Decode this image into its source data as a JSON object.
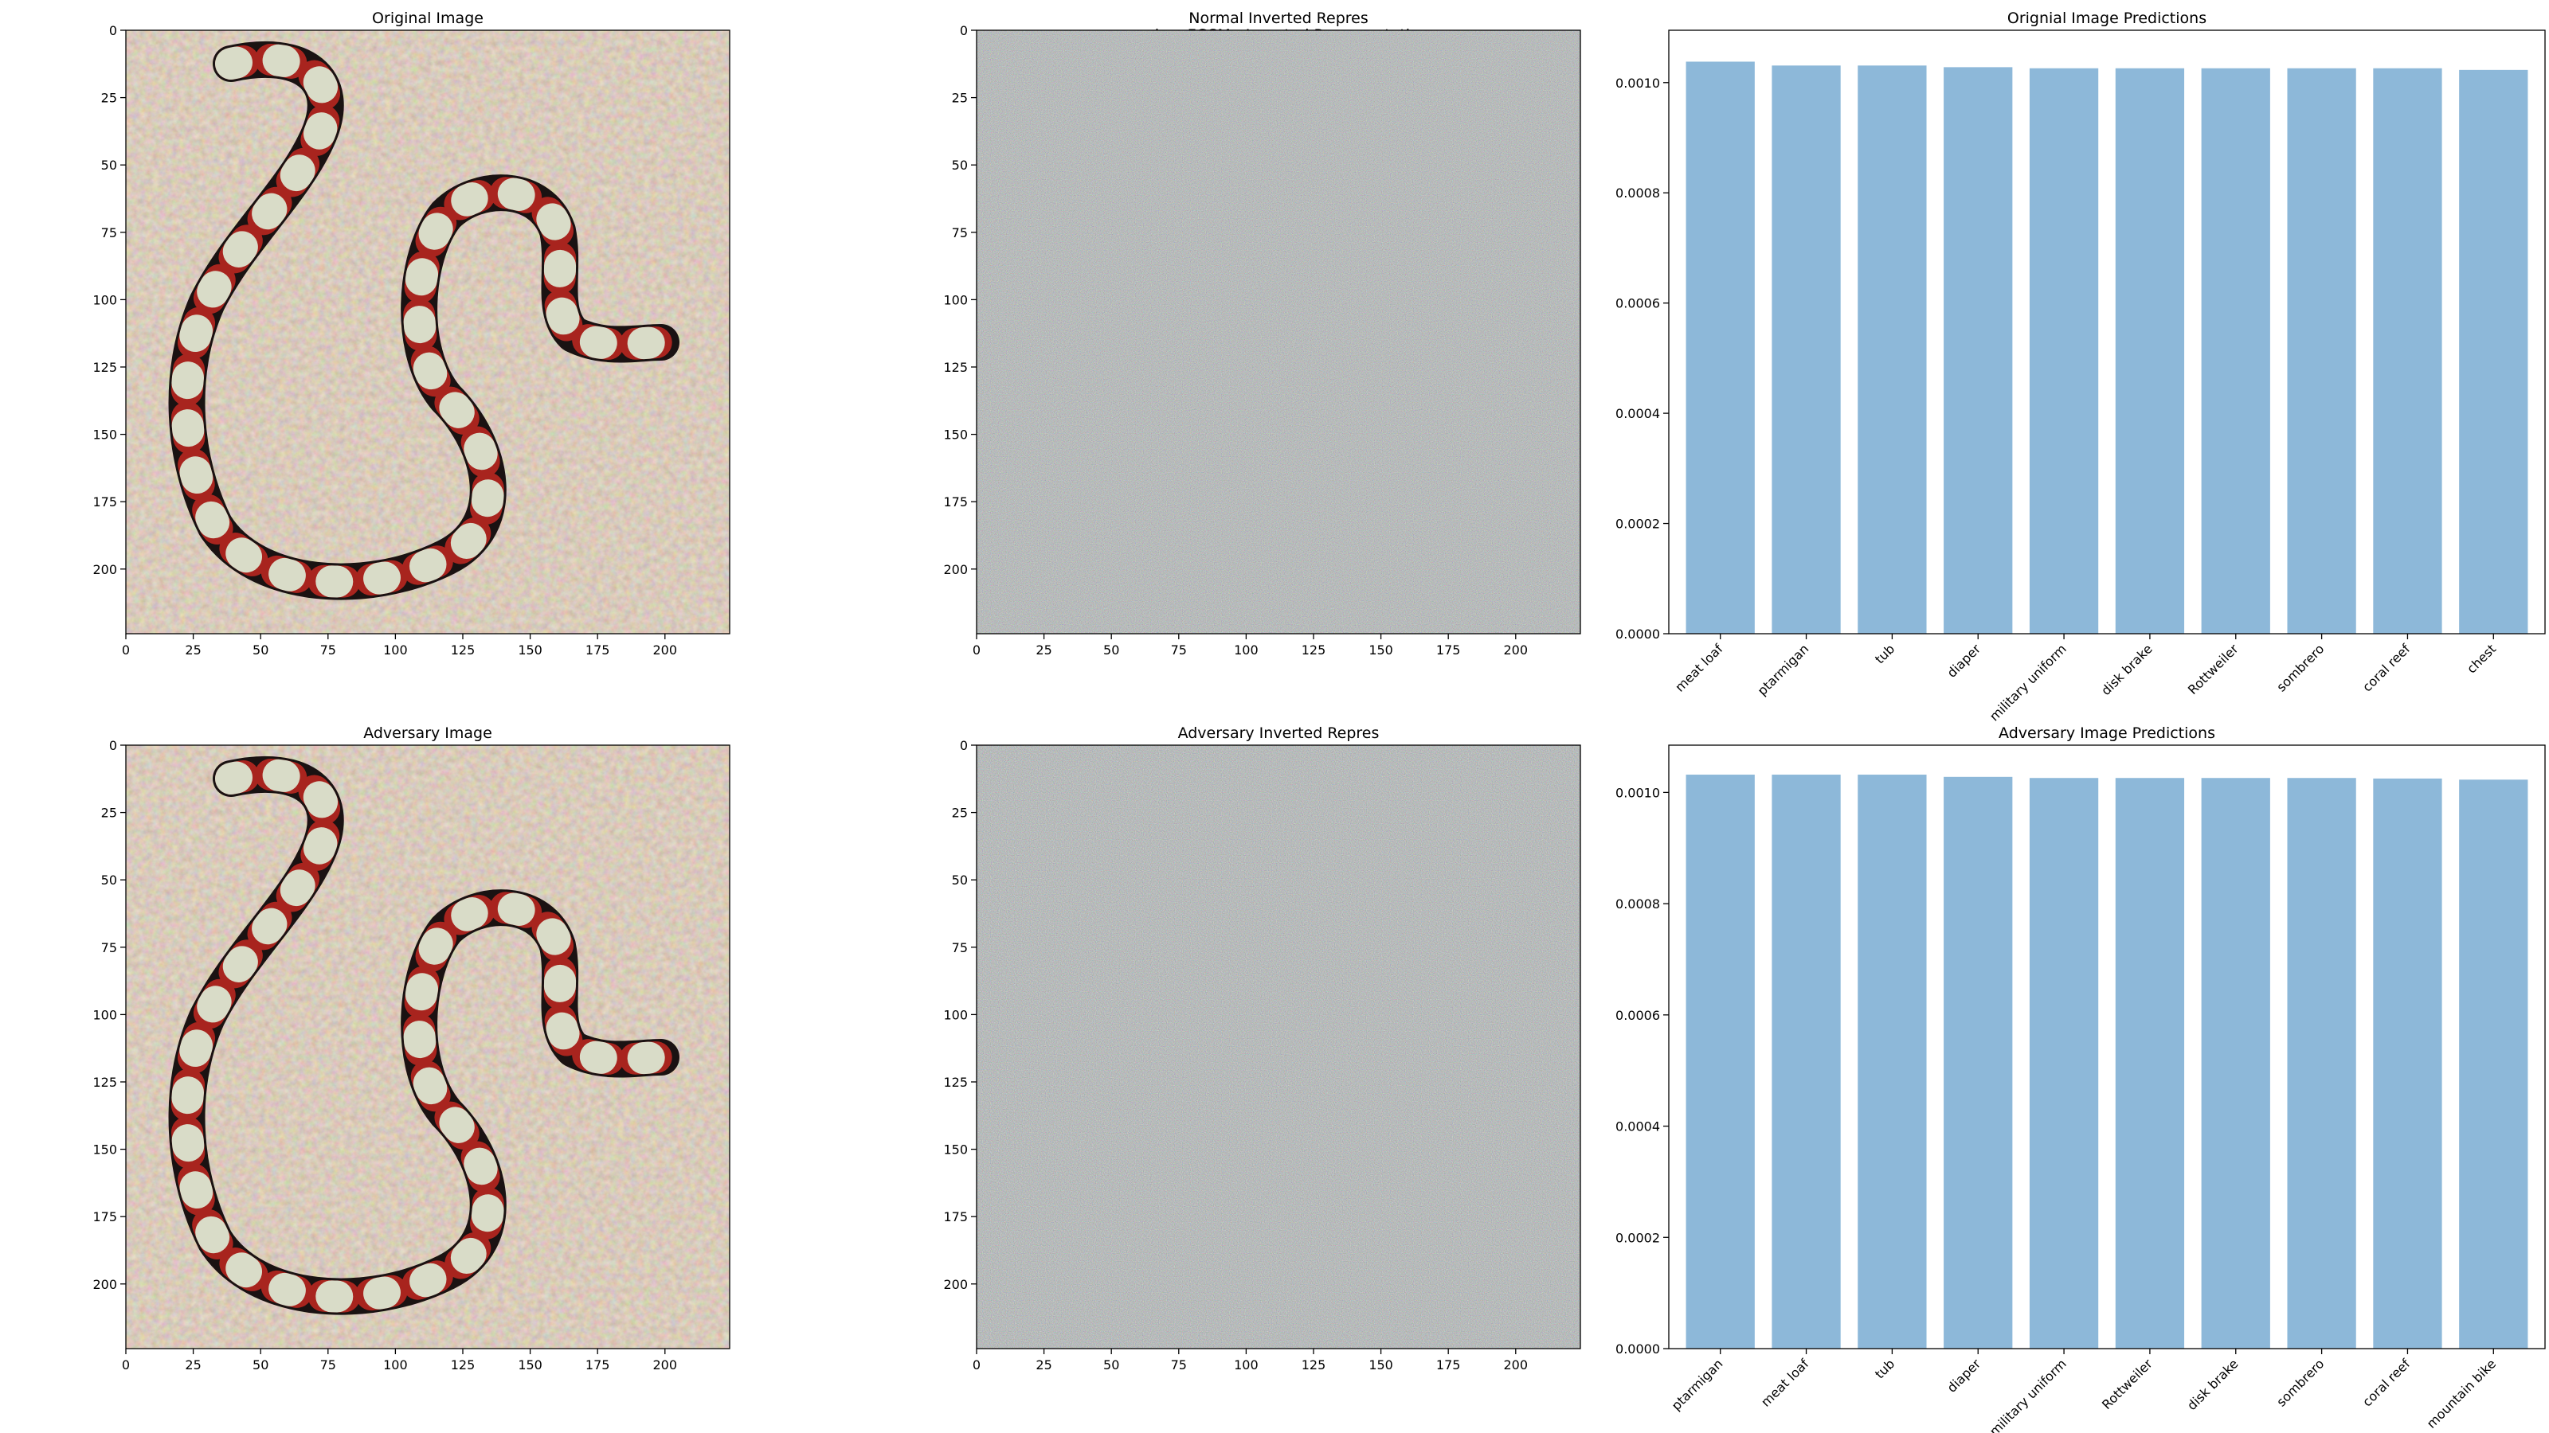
{
  "figure": {
    "suptitle": "snake - FGSM - Inverted Representation"
  },
  "panels": [
    {
      "kind": "image",
      "title": "Original Image",
      "content": "snake-photo",
      "xticks": [
        0,
        25,
        50,
        75,
        100,
        125,
        150,
        175,
        200
      ],
      "yticks": [
        0,
        25,
        50,
        75,
        100,
        125,
        150,
        175,
        200
      ],
      "extent": [
        0,
        224
      ]
    },
    {
      "kind": "image",
      "title": "Normal Inverted Repres",
      "content": "noise",
      "xticks": [
        0,
        25,
        50,
        75,
        100,
        125,
        150,
        175,
        200
      ],
      "yticks": [
        0,
        25,
        50,
        75,
        100,
        125,
        150,
        175,
        200
      ],
      "extent": [
        0,
        224
      ]
    },
    {
      "kind": "image",
      "title": "Adversary Image",
      "content": "snake-photo",
      "xticks": [
        0,
        25,
        50,
        75,
        100,
        125,
        150,
        175,
        200
      ],
      "yticks": [
        0,
        25,
        50,
        75,
        100,
        125,
        150,
        175,
        200
      ],
      "extent": [
        0,
        224
      ]
    },
    {
      "kind": "image",
      "title": "Adversary Inverted Repres",
      "content": "noise",
      "xticks": [
        0,
        25,
        50,
        75,
        100,
        125,
        150,
        175,
        200
      ],
      "yticks": [
        0,
        25,
        50,
        75,
        100,
        125,
        150,
        175,
        200
      ],
      "extent": [
        0,
        224
      ]
    }
  ],
  "chart_data": [
    {
      "type": "bar",
      "title": "Orignial Image Predictions",
      "categories": [
        "meat loaf",
        "ptarmigan",
        "tub",
        "diaper",
        "military uniform",
        "disk brake",
        "Rottweiler",
        "sombrero",
        "coral reef",
        "chest"
      ],
      "values": [
        0.001038,
        0.001031,
        0.001031,
        0.001028,
        0.001026,
        0.001026,
        0.001026,
        0.001026,
        0.001026,
        0.001023
      ],
      "ylim": [
        0,
        0.001095
      ],
      "yticks": [
        "0.0000",
        "0.0002",
        "0.0004",
        "0.0006",
        "0.0008",
        "0.0010"
      ],
      "color": "#8db8d9",
      "grid": false
    },
    {
      "type": "bar",
      "title": "Adversary Image Predictions",
      "categories": [
        "ptarmigan",
        "meat loaf",
        "tub",
        "diaper",
        "military uniform",
        "Rottweiler",
        "disk brake",
        "sombrero",
        "coral reef",
        "mountain bike"
      ],
      "values": [
        0.001032,
        0.001032,
        0.001032,
        0.001028,
        0.001026,
        0.001026,
        0.001026,
        0.001026,
        0.001025,
        0.001023
      ],
      "ylim": [
        0,
        0.001085
      ],
      "yticks": [
        "0.0000",
        "0.0002",
        "0.0004",
        "0.0006",
        "0.0008",
        "0.0010"
      ],
      "color": "#8db8d9",
      "grid": false
    }
  ]
}
